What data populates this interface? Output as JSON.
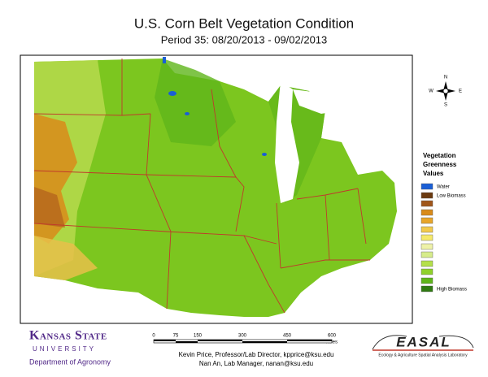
{
  "header": {
    "title": "U.S. Corn Belt Vegetation Condition",
    "subtitle": "Period 35: 08/20/2013 - 09/02/2013"
  },
  "compass": {
    "north": "N",
    "east": "E",
    "south": "S",
    "west": "W"
  },
  "legend": {
    "title": [
      "Vegetation",
      "Greenness",
      "Values"
    ],
    "water": "Water",
    "low": "Low Biomass",
    "high": "High Biomass"
  },
  "scale_bar": {
    "ticks": [
      "0",
      "75",
      "150",
      "300",
      "450",
      "600"
    ],
    "unit": "Miles"
  },
  "logo": {
    "name": "Kansas State",
    "university": "UNIVERSITY",
    "department": "Department of Agronomy"
  },
  "credits": [
    "Kevin Price, Professor/Lab Director, kpprice@ksu.edu",
    "Nan An, Lab Manager, nanan@ksu.edu"
  ],
  "lab": {
    "acronym": "EASAL",
    "name": "Ecology & Agriculture Spatial Analysis Laboratory"
  }
}
